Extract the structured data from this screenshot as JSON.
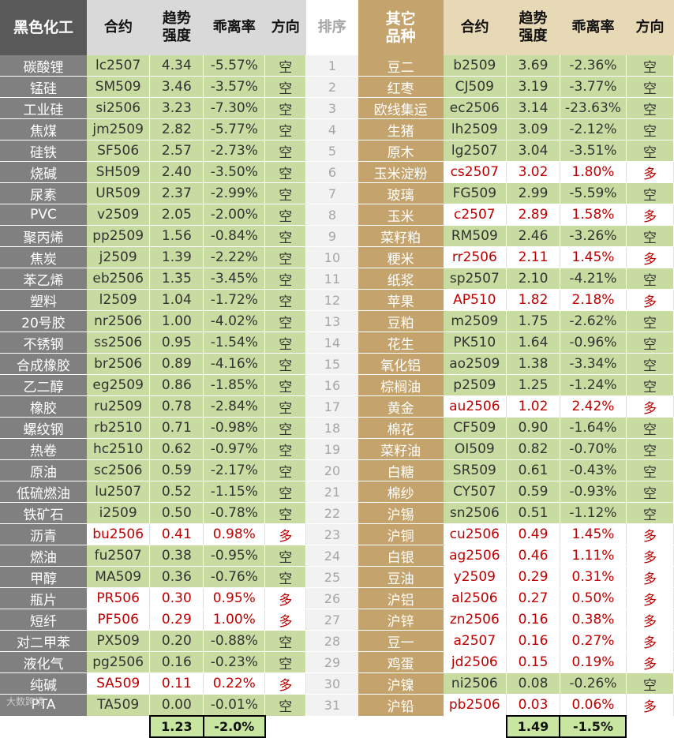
{
  "header": {
    "left_group": "黑色化工",
    "contract": "合约",
    "strength_line1": "趋势",
    "strength_line2": "强度",
    "deviation": "乖离率",
    "direction": "方向",
    "rank": "排序",
    "right_group_line1": "其它",
    "right_group_line2": "品种"
  },
  "left_rows": [
    {
      "name": "碳酸锂",
      "code": "lc2507",
      "strength": "4.34",
      "deviation": "-5.57%",
      "dir": "空"
    },
    {
      "name": "锰硅",
      "code": "SM509",
      "strength": "3.46",
      "deviation": "-3.57%",
      "dir": "空"
    },
    {
      "name": "工业硅",
      "code": "si2506",
      "strength": "3.23",
      "deviation": "-7.30%",
      "dir": "空"
    },
    {
      "name": "焦煤",
      "code": "jm2509",
      "strength": "2.82",
      "deviation": "-5.77%",
      "dir": "空"
    },
    {
      "name": "硅铁",
      "code": "SF506",
      "strength": "2.57",
      "deviation": "-2.73%",
      "dir": "空"
    },
    {
      "name": "烧碱",
      "code": "SH509",
      "strength": "2.40",
      "deviation": "-3.50%",
      "dir": "空"
    },
    {
      "name": "尿素",
      "code": "UR509",
      "strength": "2.37",
      "deviation": "-2.99%",
      "dir": "空"
    },
    {
      "name": "PVC",
      "code": "v2509",
      "strength": "2.05",
      "deviation": "-2.00%",
      "dir": "空"
    },
    {
      "name": "聚丙烯",
      "code": "pp2509",
      "strength": "1.56",
      "deviation": "-0.84%",
      "dir": "空"
    },
    {
      "name": "焦炭",
      "code": "j2509",
      "strength": "1.39",
      "deviation": "-2.22%",
      "dir": "空"
    },
    {
      "name": "苯乙烯",
      "code": "eb2506",
      "strength": "1.35",
      "deviation": "-3.45%",
      "dir": "空"
    },
    {
      "name": "塑料",
      "code": "l2509",
      "strength": "1.04",
      "deviation": "-1.72%",
      "dir": "空"
    },
    {
      "name": "20号胶",
      "code": "nr2506",
      "strength": "1.00",
      "deviation": "-4.02%",
      "dir": "空"
    },
    {
      "name": "不锈钢",
      "code": "ss2506",
      "strength": "0.95",
      "deviation": "-1.54%",
      "dir": "空"
    },
    {
      "name": "合成橡胶",
      "code": "br2506",
      "strength": "0.89",
      "deviation": "-4.16%",
      "dir": "空"
    },
    {
      "name": "乙二醇",
      "code": "eg2509",
      "strength": "0.86",
      "deviation": "-1.85%",
      "dir": "空"
    },
    {
      "name": "橡胶",
      "code": "ru2509",
      "strength": "0.78",
      "deviation": "-2.84%",
      "dir": "空"
    },
    {
      "name": "螺纹钢",
      "code": "rb2510",
      "strength": "0.71",
      "deviation": "-0.98%",
      "dir": "空"
    },
    {
      "name": "热卷",
      "code": "hc2510",
      "strength": "0.62",
      "deviation": "-0.97%",
      "dir": "空"
    },
    {
      "name": "原油",
      "code": "sc2506",
      "strength": "0.59",
      "deviation": "-2.17%",
      "dir": "空"
    },
    {
      "name": "低硫燃油",
      "code": "lu2507",
      "strength": "0.52",
      "deviation": "-1.15%",
      "dir": "空"
    },
    {
      "name": "铁矿石",
      "code": "i2509",
      "strength": "0.50",
      "deviation": "-0.78%",
      "dir": "空"
    },
    {
      "name": "沥青",
      "code": "bu2506",
      "strength": "0.41",
      "deviation": "0.98%",
      "dir": "多"
    },
    {
      "name": "燃油",
      "code": "fu2507",
      "strength": "0.38",
      "deviation": "-0.95%",
      "dir": "空"
    },
    {
      "name": "甲醇",
      "code": "MA509",
      "strength": "0.36",
      "deviation": "-0.76%",
      "dir": "空"
    },
    {
      "name": "瓶片",
      "code": "PR506",
      "strength": "0.30",
      "deviation": "0.95%",
      "dir": "多"
    },
    {
      "name": "短纤",
      "code": "PF506",
      "strength": "0.29",
      "deviation": "1.00%",
      "dir": "多"
    },
    {
      "name": "对二甲苯",
      "code": "PX509",
      "strength": "0.20",
      "deviation": "-0.88%",
      "dir": "空"
    },
    {
      "name": "液化气",
      "code": "pg2506",
      "strength": "0.16",
      "deviation": "-0.23%",
      "dir": "空"
    },
    {
      "name": "纯碱",
      "code": "SA509",
      "strength": "0.11",
      "deviation": "0.22%",
      "dir": "多"
    },
    {
      "name": "PTA",
      "code": "TA509",
      "strength": "0.00",
      "deviation": "-0.01%",
      "dir": "空"
    }
  ],
  "ranks": [
    "1",
    "2",
    "3",
    "4",
    "5",
    "6",
    "7",
    "8",
    "9",
    "10",
    "11",
    "12",
    "13",
    "14",
    "15",
    "16",
    "17",
    "18",
    "19",
    "20",
    "21",
    "22",
    "23",
    "24",
    "25",
    "26",
    "27",
    "28",
    "29",
    "30",
    "31"
  ],
  "right_rows": [
    {
      "name": "豆二",
      "code": "b2509",
      "strength": "3.69",
      "deviation": "-2.36%",
      "dir": "空"
    },
    {
      "name": "红枣",
      "code": "CJ509",
      "strength": "3.19",
      "deviation": "-3.77%",
      "dir": "空"
    },
    {
      "name": "欧线集运",
      "code": "ec2506",
      "strength": "3.14",
      "deviation": "-23.63%",
      "dir": "空"
    },
    {
      "name": "生猪",
      "code": "lh2509",
      "strength": "3.09",
      "deviation": "-2.12%",
      "dir": "空"
    },
    {
      "name": "原木",
      "code": "lg2507",
      "strength": "3.04",
      "deviation": "-3.51%",
      "dir": "空"
    },
    {
      "name": "玉米淀粉",
      "code": "cs2507",
      "strength": "3.02",
      "deviation": "1.80%",
      "dir": "多"
    },
    {
      "name": "玻璃",
      "code": "FG509",
      "strength": "2.99",
      "deviation": "-5.59%",
      "dir": "空"
    },
    {
      "name": "玉米",
      "code": "c2507",
      "strength": "2.89",
      "deviation": "1.58%",
      "dir": "多"
    },
    {
      "name": "菜籽粕",
      "code": "RM509",
      "strength": "2.46",
      "deviation": "-3.26%",
      "dir": "空"
    },
    {
      "name": "粳米",
      "code": "rr2506",
      "strength": "2.11",
      "deviation": "1.45%",
      "dir": "多"
    },
    {
      "name": "纸浆",
      "code": "sp2507",
      "strength": "2.10",
      "deviation": "-4.21%",
      "dir": "空"
    },
    {
      "name": "苹果",
      "code": "AP510",
      "strength": "1.82",
      "deviation": "2.18%",
      "dir": "多"
    },
    {
      "name": "豆粕",
      "code": "m2509",
      "strength": "1.75",
      "deviation": "-2.62%",
      "dir": "空"
    },
    {
      "name": "花生",
      "code": "PK510",
      "strength": "1.64",
      "deviation": "-0.96%",
      "dir": "空"
    },
    {
      "name": "氧化铝",
      "code": "ao2509",
      "strength": "1.38",
      "deviation": "-3.34%",
      "dir": "空"
    },
    {
      "name": "棕榈油",
      "code": "p2509",
      "strength": "1.25",
      "deviation": "-1.24%",
      "dir": "空"
    },
    {
      "name": "黄金",
      "code": "au2506",
      "strength": "1.02",
      "deviation": "2.42%",
      "dir": "多"
    },
    {
      "name": "棉花",
      "code": "CF509",
      "strength": "0.90",
      "deviation": "-1.64%",
      "dir": "空"
    },
    {
      "name": "菜籽油",
      "code": "OI509",
      "strength": "0.82",
      "deviation": "-0.70%",
      "dir": "空"
    },
    {
      "name": "白糖",
      "code": "SR509",
      "strength": "0.61",
      "deviation": "-0.43%",
      "dir": "空"
    },
    {
      "name": "棉纱",
      "code": "CY507",
      "strength": "0.59",
      "deviation": "-0.93%",
      "dir": "空"
    },
    {
      "name": "沪锡",
      "code": "sn2506",
      "strength": "0.51",
      "deviation": "-1.12%",
      "dir": "空"
    },
    {
      "name": "沪铜",
      "code": "cu2506",
      "strength": "0.49",
      "deviation": "1.45%",
      "dir": "多"
    },
    {
      "name": "白银",
      "code": "ag2506",
      "strength": "0.46",
      "deviation": "1.11%",
      "dir": "多"
    },
    {
      "name": "豆油",
      "code": "y2509",
      "strength": "0.29",
      "deviation": "0.31%",
      "dir": "多"
    },
    {
      "name": "沪铝",
      "code": "al2506",
      "strength": "0.27",
      "deviation": "0.50%",
      "dir": "多"
    },
    {
      "name": "沪锌",
      "code": "zn2506",
      "strength": "0.16",
      "deviation": "0.38%",
      "dir": "多"
    },
    {
      "name": "豆一",
      "code": "a2507",
      "strength": "0.16",
      "deviation": "0.27%",
      "dir": "多"
    },
    {
      "name": "鸡蛋",
      "code": "jd2506",
      "strength": "0.15",
      "deviation": "0.19%",
      "dir": "多"
    },
    {
      "name": "沪镍",
      "code": "ni2506",
      "strength": "0.08",
      "deviation": "-0.26%",
      "dir": "空"
    },
    {
      "name": "沪铅",
      "code": "pb2506",
      "strength": "0.03",
      "deviation": "0.06%",
      "dir": "多"
    }
  ],
  "footer": {
    "left_avg_strength": "1.23",
    "left_avg_deviation": "-2.0%",
    "right_avg_strength": "1.49",
    "right_avg_deviation": "-1.5%",
    "logo_text": "大数跨境"
  },
  "colors": {
    "short_bg": "#c8dba0",
    "long_text": "#c00000",
    "left_name_bg": "#808080",
    "right_name_bg": "#c4a46c"
  }
}
